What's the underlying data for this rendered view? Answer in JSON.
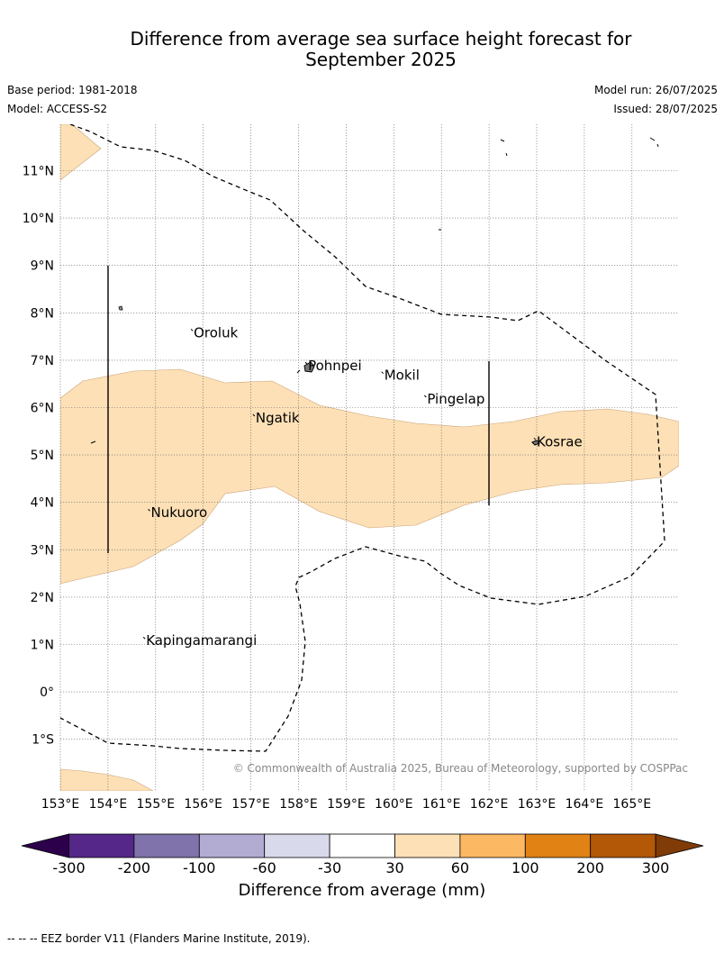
{
  "title_line1": "Difference from average sea surface height forecast for",
  "title_line2": "September 2025",
  "meta": {
    "base_period": "Base period: 1981-2018",
    "model": "Model: ACCESS-S2",
    "model_run": "Model run: 26/07/2025",
    "issued": "Issued: 28/07/2025"
  },
  "map": {
    "lon_range": [
      153,
      166
    ],
    "lat_range": [
      -2,
      12
    ],
    "lon_ticks": [
      "153°E",
      "154°E",
      "155°E",
      "156°E",
      "157°E",
      "158°E",
      "159°E",
      "160°E",
      "161°E",
      "162°E",
      "163°E",
      "164°E",
      "165°E"
    ],
    "lat_ticks": [
      "11°N",
      "10°N",
      "9°N",
      "8°N",
      "7°N",
      "6°N",
      "5°N",
      "4°N",
      "3°N",
      "2°N",
      "1°N",
      "0°",
      "1°S"
    ],
    "places": [
      {
        "name": "Oroluk",
        "lon": 155.8,
        "lat": 7.6
      },
      {
        "name": "Pohnpei",
        "lon": 158.2,
        "lat": 6.9
      },
      {
        "name": "Mokil",
        "lon": 159.8,
        "lat": 6.7
      },
      {
        "name": "Pingelap",
        "lon": 160.7,
        "lat": 6.2
      },
      {
        "name": "Ngatik",
        "lon": 157.1,
        "lat": 5.8
      },
      {
        "name": "Kosrae",
        "lon": 163.0,
        "lat": 5.3
      },
      {
        "name": "Nukuoro",
        "lon": 154.9,
        "lat": 3.8
      },
      {
        "name": "Kapingamarangi",
        "lon": 154.8,
        "lat": 1.1
      }
    ],
    "copyright": "© Commonwealth of Australia 2025, Bureau of Meteorology, supported by COSPPac",
    "fill_color": "#fde0b6"
  },
  "colorbar": {
    "ticks": [
      "-300",
      "-200",
      "-100",
      "-60",
      "-30",
      "30",
      "60",
      "100",
      "200",
      "300"
    ],
    "colors": [
      "#2d004b",
      "#542788",
      "#8073ac",
      "#b2abd2",
      "#d8daeb",
      "#ffffff",
      "#fee0b6",
      "#fdb863",
      "#e08214",
      "#b35806",
      "#7f3b08"
    ],
    "label": "Difference from average (mm)"
  },
  "footer": "-- -- -- EEZ border V11 (Flanders Marine Institute, 2019)."
}
